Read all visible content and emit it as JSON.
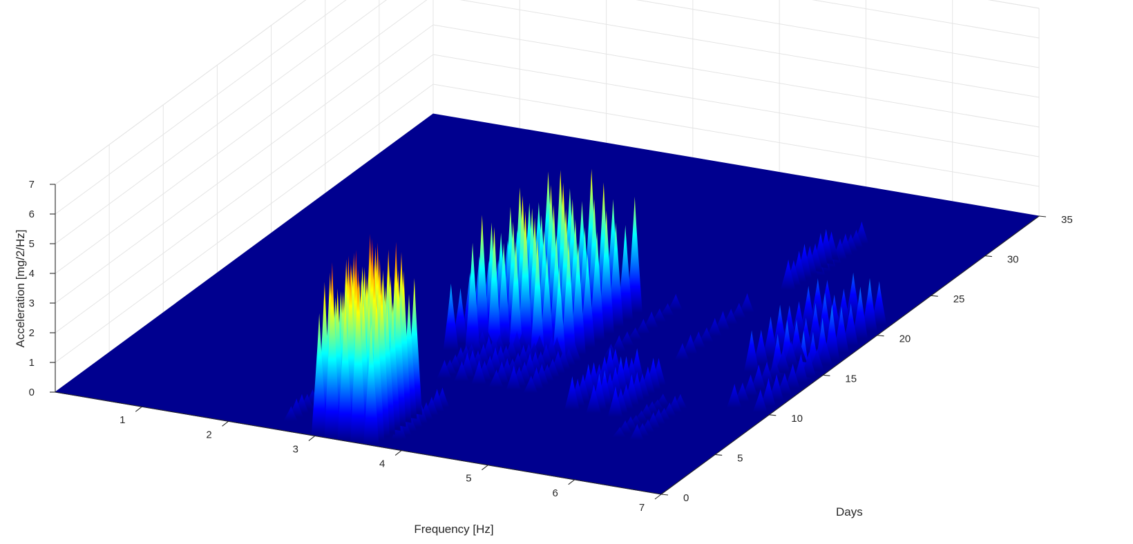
{
  "chart_data": {
    "type": "surface",
    "title": "",
    "xlabel": "Frequency [Hz]",
    "ylabel": "Days",
    "zlabel": "Acceleration [mg/2/Hz]",
    "xlim": [
      0,
      7
    ],
    "ylim": [
      0,
      35
    ],
    "zlim": [
      0,
      7
    ],
    "xticks": [
      1,
      2,
      3,
      4,
      5,
      6,
      7
    ],
    "yticks": [
      0,
      5,
      10,
      15,
      20,
      25,
      30,
      35
    ],
    "zticks": [
      0,
      1,
      2,
      3,
      4,
      5,
      6,
      7
    ],
    "grid": true,
    "colormap": "jet",
    "colormap_stops": [
      "#00008f",
      "#0000ff",
      "#0080ff",
      "#00ffff",
      "#80ff80",
      "#ffff00",
      "#ff8000",
      "#ff0000",
      "#800000"
    ],
    "peaks": [
      {
        "frequency": 2.6,
        "day_start": 1,
        "day_end": 5,
        "amplitude": 0.7
      },
      {
        "frequency": 3.05,
        "day_start": 0,
        "day_end": 4,
        "amplitude": 5.4
      },
      {
        "frequency": 3.2,
        "day_start": 0,
        "day_end": 4,
        "amplitude": 6.0
      },
      {
        "frequency": 3.35,
        "day_start": 0,
        "day_end": 4,
        "amplitude": 6.3
      },
      {
        "frequency": 3.5,
        "day_start": 0,
        "day_end": 4,
        "amplitude": 5.9
      },
      {
        "frequency": 3.65,
        "day_start": 0,
        "day_end": 4,
        "amplitude": 5.4
      },
      {
        "frequency": 3.85,
        "day_start": 1,
        "day_end": 5,
        "amplitude": 0.8
      },
      {
        "frequency": 3.5,
        "day_start": 8,
        "day_end": 12,
        "amplitude": 0.7
      },
      {
        "frequency": 3.7,
        "day_start": 8,
        "day_end": 12,
        "amplitude": 0.9
      },
      {
        "frequency": 3.9,
        "day_start": 8,
        "day_end": 12,
        "amplitude": 0.9
      },
      {
        "frequency": 4.1,
        "day_start": 8,
        "day_end": 12,
        "amplitude": 0.8
      },
      {
        "frequency": 4.3,
        "day_start": 8,
        "day_end": 12,
        "amplitude": 0.9
      },
      {
        "frequency": 4.5,
        "day_start": 8,
        "day_end": 12,
        "amplitude": 0.8
      },
      {
        "frequency": 3.2,
        "day_start": 11,
        "day_end": 18,
        "amplitude": 2.5
      },
      {
        "frequency": 3.45,
        "day_start": 11,
        "day_end": 18,
        "amplitude": 4.5
      },
      {
        "frequency": 3.7,
        "day_start": 11,
        "day_end": 18,
        "amplitude": 4.8
      },
      {
        "frequency": 3.95,
        "day_start": 11,
        "day_end": 18,
        "amplitude": 4.9
      },
      {
        "frequency": 4.2,
        "day_start": 11,
        "day_end": 18,
        "amplitude": 4.6
      },
      {
        "frequency": 4.45,
        "day_start": 11,
        "day_end": 18,
        "amplitude": 4.2
      },
      {
        "frequency": 5.1,
        "day_start": 7,
        "day_end": 11,
        "amplitude": 1.2
      },
      {
        "frequency": 5.35,
        "day_start": 7,
        "day_end": 11,
        "amplitude": 1.3
      },
      {
        "frequency": 5.6,
        "day_start": 7,
        "day_end": 11,
        "amplitude": 1.1
      },
      {
        "frequency": 5.9,
        "day_start": 5,
        "day_end": 9,
        "amplitude": 0.5
      },
      {
        "frequency": 6.1,
        "day_start": 5,
        "day_end": 9,
        "amplitude": 0.6
      },
      {
        "frequency": 4.8,
        "day_start": 13,
        "day_end": 19,
        "amplitude": 0.6
      },
      {
        "frequency": 5.5,
        "day_start": 14,
        "day_end": 20,
        "amplitude": 0.7
      },
      {
        "frequency": 6.3,
        "day_start": 14,
        "day_end": 21,
        "amplitude": 1.6
      },
      {
        "frequency": 6.6,
        "day_start": 14,
        "day_end": 21,
        "amplitude": 1.7
      },
      {
        "frequency": 6.9,
        "day_start": 14,
        "day_end": 21,
        "amplitude": 1.9
      },
      {
        "frequency": 6.6,
        "day_start": 10,
        "day_end": 16,
        "amplitude": 0.9
      },
      {
        "frequency": 6.9,
        "day_start": 10,
        "day_end": 16,
        "amplitude": 1.0
      },
      {
        "frequency": 5.6,
        "day_start": 23,
        "day_end": 27,
        "amplitude": 1.2
      },
      {
        "frequency": 5.7,
        "day_start": 25,
        "day_end": 29,
        "amplitude": 0.8
      }
    ]
  }
}
